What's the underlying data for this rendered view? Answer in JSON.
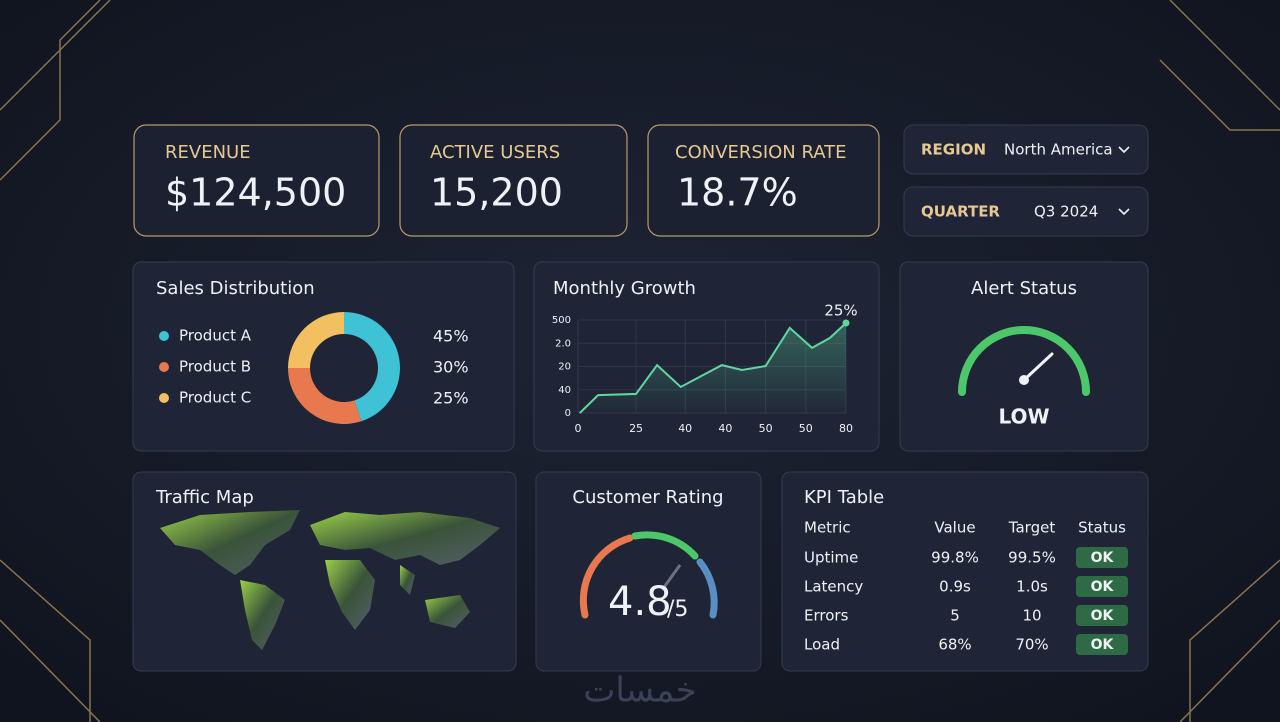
{
  "kpis": [
    {
      "label": "REVENUE",
      "value": "$124,500"
    },
    {
      "label": "ACTIVE USERS",
      "value": "15,200"
    },
    {
      "label": "CONVERSION RATE",
      "value": "18.7%"
    }
  ],
  "filters": [
    {
      "label": "REGION",
      "value": "North America"
    },
    {
      "label": "QUARTER",
      "value": "Q3 2024"
    }
  ],
  "sales_distribution": {
    "type": "pie",
    "title": "Sales Distribution",
    "categories": [
      "Product A",
      "Product B",
      "Product C"
    ],
    "values": [
      45,
      30,
      25
    ],
    "value_labels": [
      "45%",
      "30%",
      "25%"
    ],
    "colors": [
      "#3fc1d6",
      "#e8794f",
      "#f2c060"
    ]
  },
  "monthly_growth": {
    "type": "line",
    "title": "Monthly Growth",
    "annotation": "25%",
    "x": [
      0.04,
      0.45,
      1.3,
      1.77,
      2.3,
      3.22,
      3.67,
      4.2,
      4.74,
      5.24,
      5.64,
      6.0
    ],
    "values": [
      0,
      0.77,
      0.82,
      2.06,
      1.12,
      2.06,
      1.85,
      2.02,
      3.66,
      2.8,
      3.23,
      3.87
    ],
    "color": "#5fd6a0",
    "xlim": [
      0,
      6
    ],
    "ylim": [
      0,
      4
    ],
    "xticks": [
      0,
      {
        "value": 1.3,
        "label": "25"
      },
      {
        "value": 2.4,
        "label": "40"
      },
      {
        "value": 3.3,
        "label": "40"
      },
      {
        "value": 4.2,
        "label": "50"
      },
      {
        "value": 5.1,
        "label": "50"
      },
      {
        "value": 6,
        "label": "80"
      }
    ],
    "yticks": [
      0,
      {
        "value": 1,
        "label": "40"
      },
      {
        "value": 2,
        "label": "20"
      },
      {
        "value": 3,
        "label": "2.0"
      },
      {
        "value": 4,
        "label": "500"
      }
    ],
    "grid": true
  },
  "alert_status": {
    "title": "Alert Status",
    "status": "LOW"
  },
  "traffic_map": {
    "title": "Traffic Map"
  },
  "customer_rating": {
    "title": "Customer Rating",
    "score": "4.8",
    "scale": "/5"
  },
  "kpi_table": {
    "title": "KPI Table",
    "header": [
      "Metric",
      "Value",
      "Target",
      "Status"
    ],
    "rows": [
      [
        "Uptime",
        "99.8%",
        "99.5%",
        "OK"
      ],
      [
        "Latency",
        "0.9s",
        "1.0s",
        "OK"
      ],
      [
        "Errors",
        "5",
        "10",
        "OK"
      ],
      [
        "Load",
        "68%",
        "70%",
        "OK"
      ]
    ]
  },
  "watermark": "خمسات"
}
